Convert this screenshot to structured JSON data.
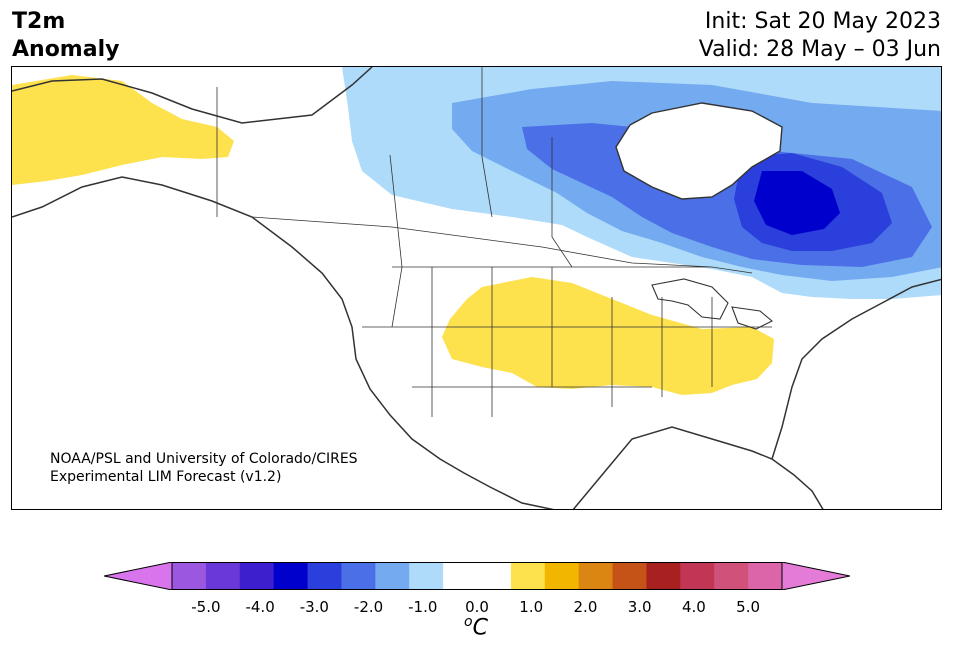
{
  "title": {
    "left_line1": "T2m",
    "left_line2": "Anomaly",
    "right_line1": "Init: Sat 20 May 2023",
    "right_line2": "Valid: 28 May – 03 Jun"
  },
  "credit": {
    "line1": "NOAA/PSL and University of Colorado/CIRES",
    "line2": "Experimental LIM Forecast (v1.2)"
  },
  "colorbar": {
    "ticks": [
      "-5.0",
      "-4.0",
      "-3.0",
      "-2.0",
      "-1.0",
      "0.0",
      "1.0",
      "2.0",
      "3.0",
      "4.0",
      "5.0"
    ],
    "unit_sup": "o",
    "unit": "C",
    "colors": [
      "#d874ec",
      "#9b57e0",
      "#6a38d9",
      "#3d1fce",
      "#0000cd",
      "#2a3fdb",
      "#4b6fe6",
      "#74aaf0",
      "#aedbfa",
      "#ffffff",
      "#ffffff",
      "#fde14d",
      "#f2b600",
      "#db8512",
      "#c55217",
      "#a82020",
      "#c23655",
      "#d0527a",
      "#dc64a8",
      "#e47bd6"
    ]
  },
  "map": {
    "region": "North America",
    "anomaly_colors": {
      "cold_1": "#aedbfa",
      "cold_2": "#74aaf0",
      "cold_3": "#4b6fe6",
      "cold_4": "#2a3fdb",
      "cold_5": "#0000cd",
      "warm_1": "#fde14d"
    }
  }
}
